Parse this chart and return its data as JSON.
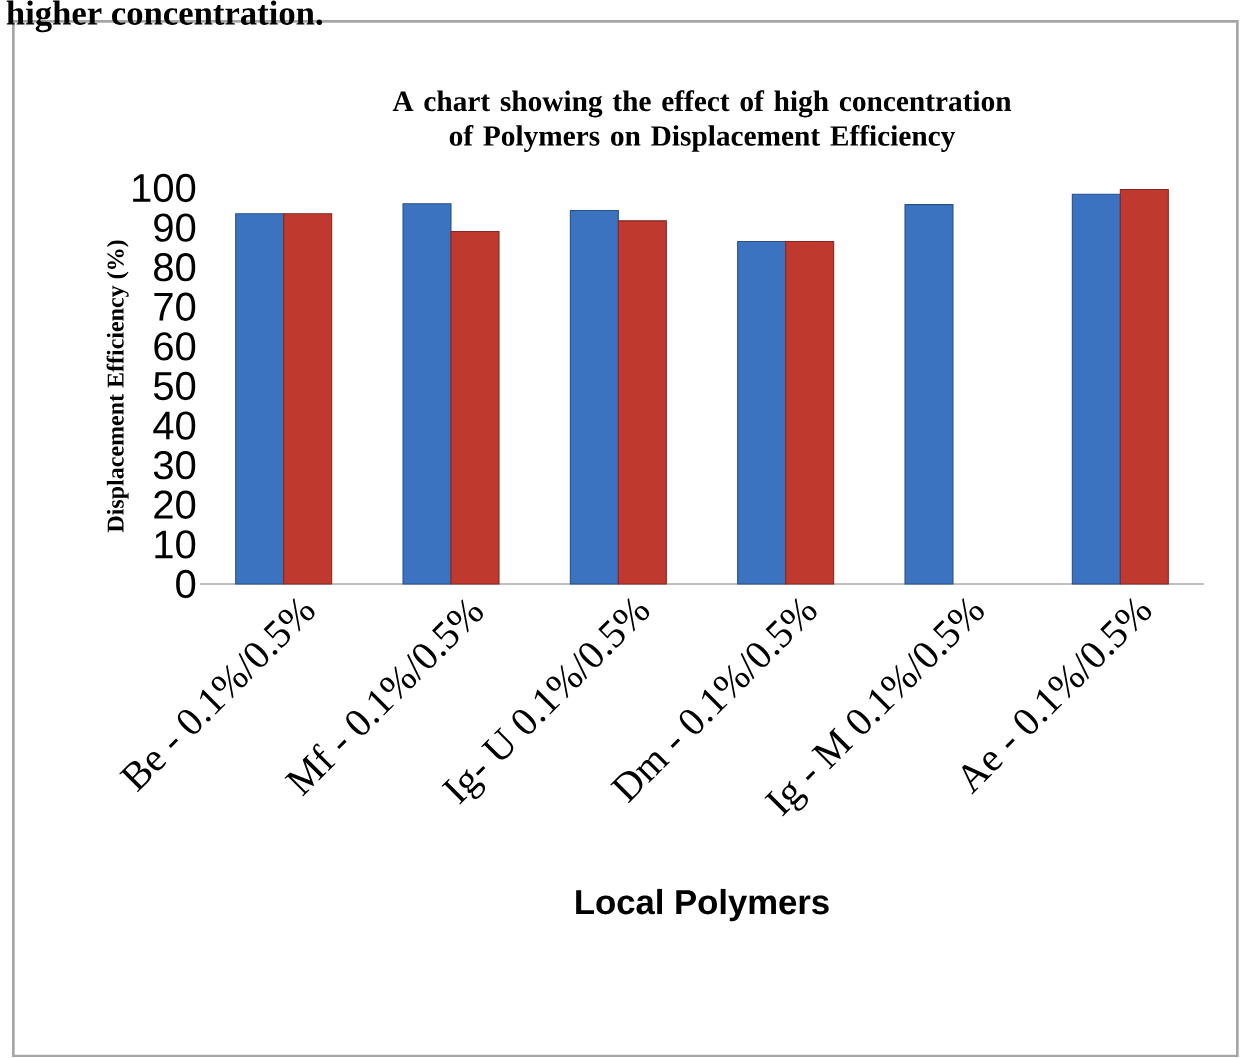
{
  "chart_data": {
    "type": "bar",
    "title": "A chart showing the effect of high concentration of Polymers on Displacement Efficiency",
    "xlabel": "Local Polymers",
    "ylabel": "Displacement Efficiency (%)",
    "annotations": [
      "higher concentration."
    ],
    "categories": [
      "Be - 0.1%/0.5%",
      "Mf - 0.1%/0.5%",
      "Ig- U 0.1%/0.5%",
      "Dm - 0.1%/0.5%",
      "Ig - M 0.1%/0.5%",
      "Ae - 0.1%/0.5%"
    ],
    "series": [
      {
        "color": "#3b73c0",
        "values": [
          93.5,
          96,
          94.3,
          86.5,
          95.8,
          98.4
        ]
      },
      {
        "color": "#c0392f",
        "values": [
          93.5,
          89,
          91.7,
          86.5,
          null,
          99.6
        ]
      }
    ],
    "ylim": [
      0,
      100
    ],
    "yticks": [
      0,
      10,
      20,
      30,
      40,
      50,
      60,
      70,
      80,
      90,
      100
    ],
    "grid": false
  }
}
